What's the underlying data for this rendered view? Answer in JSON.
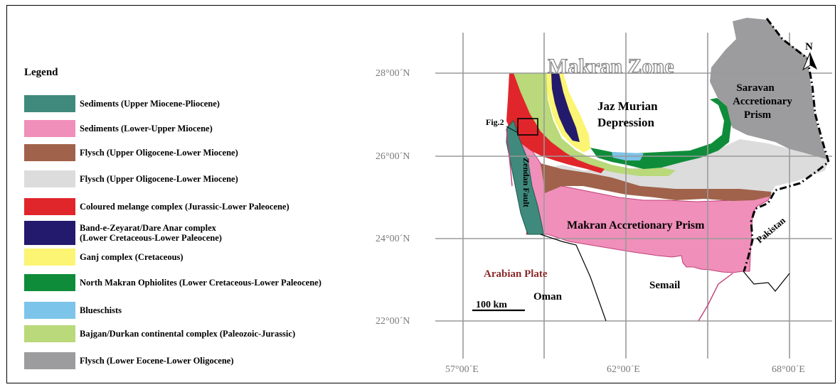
{
  "legend": {
    "title": "Legend",
    "items": [
      {
        "label": "Sediments (Upper Miocene-Pliocene)",
        "color": "#3f8a7c"
      },
      {
        "label": "Sediments (Lower-Upper Miocene)",
        "color": "#f08fba"
      },
      {
        "label": "Flysch (Upper Oligocene-Lower Miocene)",
        "color": "#a0624a"
      },
      {
        "label": "Flysch (Upper Oligocene-Lower Miocene)",
        "color": "#dcdcdc"
      },
      {
        "label": "Coloured melange complex (Jurassic-Lower Paleocene)",
        "color": "#e0262b"
      },
      {
        "label": "Band-e-Zeyarat/Dare Anar complex",
        "label2": "(Lower Cretaceous-Lower Paleocene)",
        "color": "#231a6e"
      },
      {
        "label": "Ganj complex (Cretaceous)",
        "color": "#fbf573"
      },
      {
        "label": "North Makran Ophiolites (Lower Cretaceous-Lower Paleocene)",
        "color": "#0f8c3a"
      },
      {
        "label": "Blueschists",
        "color": "#7cc4ea"
      },
      {
        "label": "Bajgan/Durkan continental complex (Paleozoic-Jurassic)",
        "color": "#b9d97a"
      },
      {
        "label": "Flysch (Lower Eocene-Lower Oligocene)",
        "color": "#9c9c9e"
      }
    ]
  },
  "map": {
    "title": "Makran Zone",
    "north_label": "N",
    "lat_labels": [
      "28°00´N",
      "26°00´N",
      "24°00´N",
      "22°00´N"
    ],
    "lon_labels": [
      "57°00´E",
      "62°00´E",
      "68°00´E"
    ],
    "labels": {
      "jaz_murian_1": "Jaz Murian",
      "jaz_murian_2": "Depression",
      "saravan_1": "Saravan",
      "saravan_2": "Accretionary",
      "saravan_3": "Prism",
      "makran_prism": "Makran Accretionary Prism",
      "pakistan": "Pakistan",
      "zendan_fault": "Zendan Fault",
      "arabian_plate": "Arabian Plate",
      "oman": "Oman",
      "semail": "Semail",
      "fig2": "Fig.2",
      "scale_bar": "100 km"
    }
  }
}
